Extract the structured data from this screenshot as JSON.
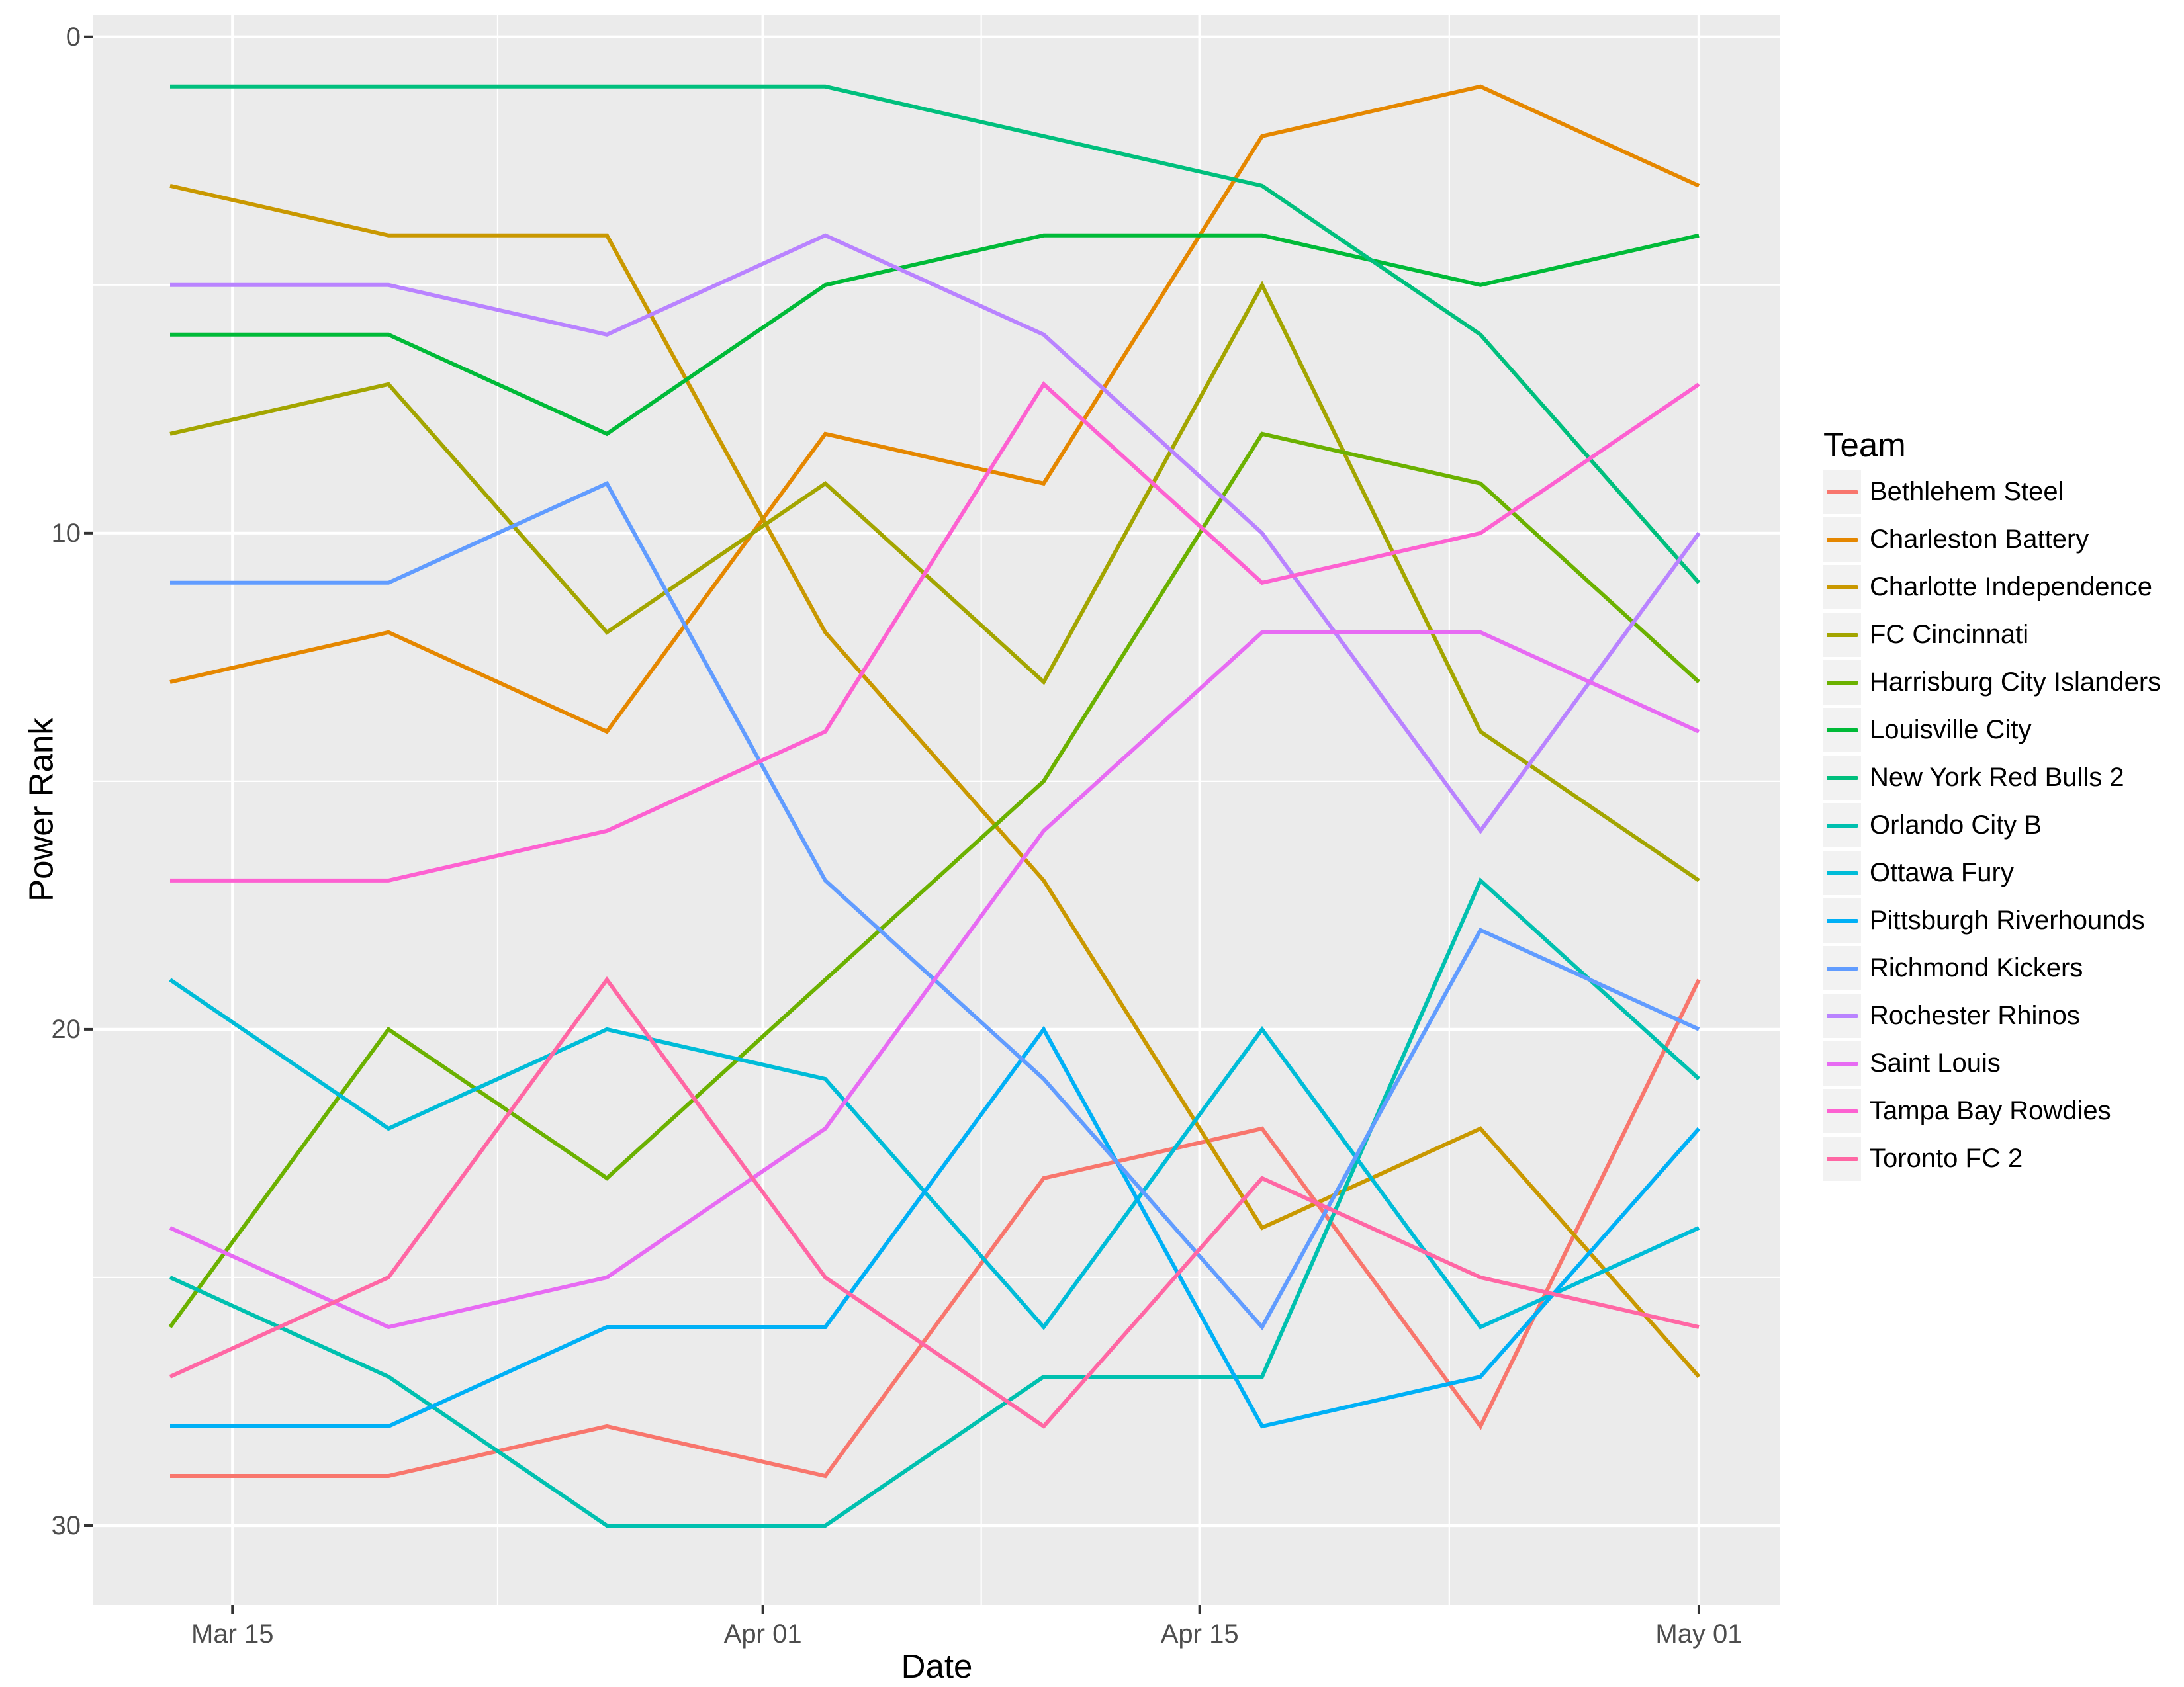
{
  "chart_data": {
    "type": "line",
    "title": "",
    "xlabel": "Date",
    "ylabel": "Power Rank",
    "legend_title": "Team",
    "legend_position": "right",
    "grid": "on",
    "panel_bg": "#EBEBEB",
    "grid_color": "#FFFFFF",
    "tick_label_color": "#4d4d4d",
    "y_reversed": true,
    "x_dates": [
      "Mar 13",
      "Mar 20",
      "Mar 27",
      "Apr 03",
      "Apr 10",
      "Apr 17",
      "Apr 24",
      "May 01"
    ],
    "x_days": [
      0,
      7,
      14,
      21,
      28,
      35,
      42,
      49
    ],
    "xlim_days": [
      -2.46,
      51.61
    ],
    "ylim": [
      -0.45,
      31.6
    ],
    "x_ticks": [
      {
        "label": "Mar 15",
        "day": 2
      },
      {
        "label": "Apr 01",
        "day": 19
      },
      {
        "label": "Apr 15",
        "day": 33
      },
      {
        "label": "May 01",
        "day": 49
      }
    ],
    "x_minor_days": [
      10.5,
      26,
      41
    ],
    "y_ticks": [
      {
        "label": "0",
        "rank": 0
      },
      {
        "label": "10",
        "rank": 10
      },
      {
        "label": "20",
        "rank": 20
      },
      {
        "label": "30",
        "rank": 30
      }
    ],
    "y_minor_ranks": [
      5,
      15,
      25
    ],
    "series": [
      {
        "name": "Bethlehem Steel",
        "color": "#F8766D",
        "values": [
          29,
          29,
          28,
          29,
          23,
          22,
          28,
          19
        ]
      },
      {
        "name": "Charleston Battery",
        "color": "#E58700",
        "values": [
          13,
          12,
          14,
          8,
          9,
          2,
          1,
          3
        ]
      },
      {
        "name": "Charlotte Independence",
        "color": "#C99800",
        "values": [
          3,
          4,
          4,
          12,
          17,
          24,
          22,
          27
        ]
      },
      {
        "name": "FC Cincinnati",
        "color": "#A3A500",
        "values": [
          8,
          7,
          12,
          9,
          13,
          5,
          14,
          17
        ]
      },
      {
        "name": "Harrisburg City Islanders",
        "color": "#6BB100",
        "values": [
          26,
          20,
          23,
          19,
          15,
          8,
          9,
          13
        ]
      },
      {
        "name": "Louisville City",
        "color": "#00BA38",
        "values": [
          6,
          6,
          8,
          5,
          4,
          4,
          5,
          4
        ]
      },
      {
        "name": "New York Red Bulls 2",
        "color": "#00BF7D",
        "values": [
          1,
          1,
          1,
          1,
          2,
          3,
          6,
          11
        ]
      },
      {
        "name": "Orlando City B",
        "color": "#00C0AF",
        "values": [
          25,
          27,
          30,
          30,
          27,
          27,
          17,
          21
        ]
      },
      {
        "name": "Ottawa Fury",
        "color": "#00BCD8",
        "values": [
          19,
          22,
          20,
          21,
          26,
          20,
          26,
          24
        ]
      },
      {
        "name": "Pittsburgh Riverhounds",
        "color": "#00B0F6",
        "values": [
          28,
          28,
          26,
          26,
          20,
          28,
          27,
          22
        ]
      },
      {
        "name": "Richmond Kickers",
        "color": "#619CFF",
        "values": [
          11,
          11,
          9,
          17,
          21,
          26,
          18,
          20
        ]
      },
      {
        "name": "Rochester Rhinos",
        "color": "#B983FF",
        "values": [
          5,
          5,
          6,
          4,
          6,
          10,
          16,
          10
        ]
      },
      {
        "name": "Saint Louis",
        "color": "#E76BF3",
        "values": [
          24,
          26,
          25,
          22,
          16,
          12,
          12,
          14
        ]
      },
      {
        "name": "Tampa Bay Rowdies",
        "color": "#FD61D1",
        "values": [
          17,
          17,
          16,
          14,
          7,
          11,
          10,
          7
        ]
      },
      {
        "name": "Toronto FC 2",
        "color": "#FF67A4",
        "values": [
          27,
          25,
          19,
          25,
          28,
          23,
          25,
          26
        ]
      }
    ]
  }
}
